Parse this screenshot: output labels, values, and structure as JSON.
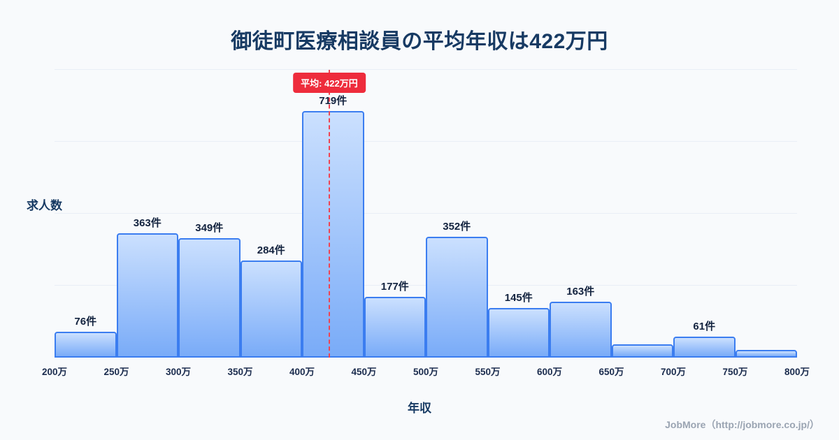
{
  "title": "御徒町医療相談員の平均年収は422万円",
  "axes": {
    "y_label": "求人数",
    "x_label": "年収"
  },
  "badge": {
    "label": "平均: 422万円"
  },
  "footer": {
    "credit": "JobMore（http://jobmore.co.jp/）"
  },
  "colors": {
    "background": "#f8fafc",
    "title_text": "#173a63",
    "bar_fill_top": "#cbe0fe",
    "bar_fill_bottom": "#79abf8",
    "bar_border": "#3b7df0",
    "mean_line": "#f04352",
    "badge_bg": "#ee2c3c",
    "badge_text": "#ffffff",
    "footer_text": "#9aa4b2"
  },
  "chart_data": {
    "type": "bar",
    "title": "御徒町医療相談員の平均年収は422万円",
    "xlabel": "年収",
    "ylabel": "求人数",
    "ylim": [
      0,
      840
    ],
    "grid": "subtle-horizontal",
    "legend": "none",
    "x_ticks": [
      "200万",
      "250万",
      "300万",
      "350万",
      "400万",
      "450万",
      "500万",
      "550万",
      "600万",
      "650万",
      "700万",
      "750万",
      "800万"
    ],
    "mean": {
      "value": 422,
      "label": "平均: 422万円",
      "axis_min": 200,
      "axis_max": 800
    },
    "bars": [
      {
        "range": "200万-250万",
        "value": 76,
        "label": "76件"
      },
      {
        "range": "250万-300万",
        "value": 363,
        "label": "363件"
      },
      {
        "range": "300万-350万",
        "value": 349,
        "label": "349件"
      },
      {
        "range": "350万-400万",
        "value": 284,
        "label": "284件"
      },
      {
        "range": "400万-450万",
        "value": 719,
        "label": "719件"
      },
      {
        "range": "450万-500万",
        "value": 177,
        "label": "177件"
      },
      {
        "range": "500万-550万",
        "value": 352,
        "label": "352件"
      },
      {
        "range": "550万-600万",
        "value": 145,
        "label": "145件"
      },
      {
        "range": "600万-650万",
        "value": 163,
        "label": "163件"
      },
      {
        "range": "650万-700万",
        "value": 38,
        "label": ""
      },
      {
        "range": "700万-750万",
        "value": 61,
        "label": "61件"
      },
      {
        "range": "750万-800万",
        "value": 22,
        "label": ""
      }
    ]
  }
}
